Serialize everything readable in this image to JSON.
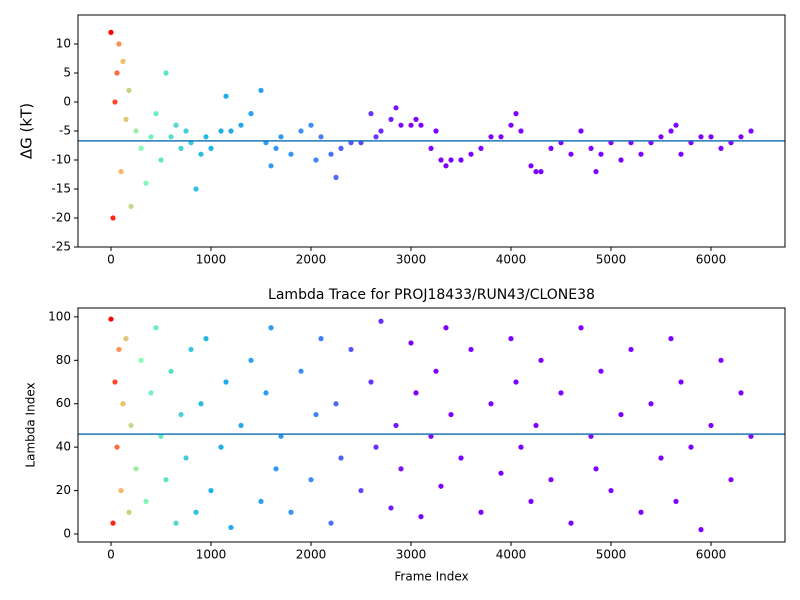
{
  "chart_data": [
    {
      "type": "scatter",
      "ylabel": "ΔG (kT)",
      "x": [
        0,
        20,
        40,
        60,
        80,
        100,
        120,
        150,
        180,
        200,
        250,
        300,
        350,
        400,
        450,
        500,
        550,
        600,
        650,
        700,
        750,
        800,
        850,
        900,
        950,
        1000,
        1100,
        1150,
        1200,
        1300,
        1400,
        1500,
        1550,
        1600,
        1650,
        1700,
        1800,
        1900,
        2000,
        2050,
        2100,
        2200,
        2250,
        2300,
        2400,
        2500,
        2600,
        2650,
        2700,
        2800,
        2850,
        2900,
        3000,
        3050,
        3100,
        3200,
        3250,
        3300,
        3350,
        3400,
        3500,
        3600,
        3700,
        3800,
        3900,
        4000,
        4050,
        4100,
        4200,
        4250,
        4300,
        4400,
        4500,
        4600,
        4700,
        4800,
        4850,
        4900,
        5000,
        5100,
        5200,
        5300,
        5400,
        5500,
        5600,
        5650,
        5700,
        5800,
        5900,
        6000,
        6100,
        6200,
        6300,
        6400
      ],
      "values": [
        12,
        -20,
        0,
        5,
        10,
        -12,
        7,
        -3,
        2,
        -18,
        -5,
        -8,
        -14,
        -6,
        -2,
        -10,
        5,
        -6,
        -4,
        -8,
        -5,
        -7,
        -15,
        -9,
        -6,
        -8,
        -5,
        1,
        -5,
        -4,
        -2,
        2,
        -7,
        -11,
        -8,
        -6,
        -9,
        -5,
        -4,
        -10,
        -6,
        -9,
        -13,
        -8,
        -7,
        -7,
        -2,
        -6,
        -5,
        -3,
        -1,
        -4,
        -4,
        -3,
        -4,
        -8,
        -5,
        -10,
        -11,
        -10,
        -10,
        -9,
        -8,
        -6,
        -6,
        -4,
        -2,
        -5,
        -11,
        -12,
        -12,
        -8,
        -7,
        -9,
        -5,
        -8,
        -12,
        -9,
        -7,
        -10,
        -7,
        -9,
        -7,
        -6,
        -5,
        -4,
        -9,
        -7,
        -6,
        -6,
        -8,
        -7,
        -6,
        -5
      ],
      "colormap": [
        {
          "x": 0,
          "color": "#ff0000"
        },
        {
          "x": 100,
          "color": "#ffb360"
        },
        {
          "x": 300,
          "color": "#80ffb4"
        },
        {
          "x": 1000,
          "color": "#1ab2ec"
        },
        {
          "x": 2000,
          "color": "#3c8bf8"
        },
        {
          "x": 3000,
          "color": "#8000ff"
        }
      ],
      "hline": -6.7,
      "hline_color": "#1f77b4",
      "xlim": [
        -330,
        6740
      ],
      "xticks": [
        0,
        1000,
        2000,
        3000,
        4000,
        5000,
        6000
      ],
      "ylim": [
        -25,
        15
      ],
      "yticks": [
        -25,
        -20,
        -15,
        -10,
        -5,
        0,
        5,
        10
      ]
    },
    {
      "type": "scatter",
      "title": "Lambda Trace for PROJ18433/RUN43/CLONE38",
      "xlabel": "Frame Index",
      "ylabel": "Lambda Index",
      "x": [
        0,
        20,
        40,
        60,
        80,
        100,
        120,
        150,
        180,
        200,
        250,
        300,
        350,
        400,
        450,
        500,
        550,
        600,
        650,
        700,
        750,
        800,
        850,
        900,
        950,
        1000,
        1100,
        1150,
        1200,
        1300,
        1400,
        1500,
        1550,
        1600,
        1650,
        1700,
        1800,
        1900,
        2000,
        2050,
        2100,
        2200,
        2250,
        2300,
        2400,
        2500,
        2600,
        2650,
        2700,
        2800,
        2850,
        2900,
        3000,
        3050,
        3100,
        3200,
        3250,
        3300,
        3350,
        3400,
        3500,
        3600,
        3700,
        3800,
        3900,
        4000,
        4050,
        4100,
        4200,
        4250,
        4300,
        4400,
        4500,
        4600,
        4700,
        4800,
        4850,
        4900,
        5000,
        5100,
        5200,
        5300,
        5400,
        5500,
        5600,
        5650,
        5700,
        5800,
        5900,
        6000,
        6100,
        6200,
        6300,
        6400
      ],
      "values": [
        99,
        5,
        70,
        40,
        85,
        20,
        60,
        90,
        10,
        50,
        30,
        80,
        15,
        65,
        95,
        45,
        25,
        75,
        5,
        55,
        35,
        85,
        10,
        60,
        90,
        20,
        40,
        70,
        3,
        50,
        80,
        15,
        65,
        95,
        30,
        45,
        10,
        75,
        25,
        55,
        90,
        5,
        60,
        35,
        85,
        20,
        70,
        40,
        98,
        12,
        50,
        30,
        88,
        65,
        8,
        45,
        75,
        22,
        95,
        55,
        35,
        85,
        10,
        60,
        28,
        90,
        70,
        40,
        15,
        50,
        80,
        25,
        65,
        5,
        95,
        45,
        30,
        75,
        20,
        55,
        85,
        10,
        60,
        35,
        90,
        15,
        70,
        40,
        2,
        50,
        80,
        25,
        65,
        45
      ],
      "colormap": [
        {
          "x": 0,
          "color": "#ff0000"
        },
        {
          "x": 100,
          "color": "#ffb360"
        },
        {
          "x": 300,
          "color": "#80ffb4"
        },
        {
          "x": 1000,
          "color": "#1ab2ec"
        },
        {
          "x": 2000,
          "color": "#3c8bf8"
        },
        {
          "x": 3000,
          "color": "#8000ff"
        }
      ],
      "hline": 46,
      "hline_color": "#1f77b4",
      "xlim": [
        -330,
        6740
      ],
      "xticks": [
        0,
        1000,
        2000,
        3000,
        4000,
        5000,
        6000
      ],
      "ylim": [
        -3.7,
        104.1
      ],
      "yticks": [
        0,
        20,
        40,
        60,
        80,
        100
      ]
    }
  ]
}
